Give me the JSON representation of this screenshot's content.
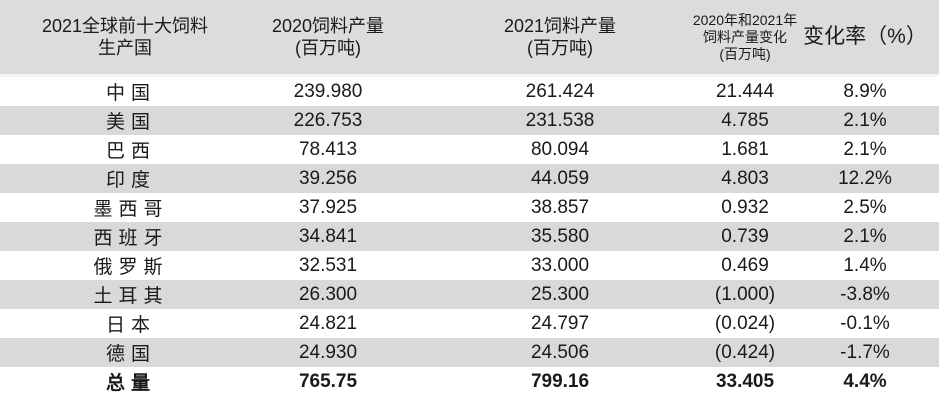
{
  "header": {
    "country": [
      "2021全球前十大饲料",
      "生产国"
    ],
    "prod2020": [
      "2020饲料产量",
      "(百万吨)"
    ],
    "prod2021": [
      "2021饲料产量",
      "(百万吨)"
    ],
    "change": [
      "2020年和2021年",
      "饲料产量变化",
      "(百万吨)"
    ],
    "rate": "变化率（%）"
  },
  "rows": [
    {
      "country": "中国",
      "p2020": "239.980",
      "p2021": "261.424",
      "change": "21.444",
      "rate": "8.9%"
    },
    {
      "country": "美国",
      "p2020": "226.753",
      "p2021": "231.538",
      "change": "4.785",
      "rate": "2.1%"
    },
    {
      "country": "巴西",
      "p2020": "78.413",
      "p2021": "80.094",
      "change": "1.681",
      "rate": "2.1%"
    },
    {
      "country": "印度",
      "p2020": "39.256",
      "p2021": "44.059",
      "change": "4.803",
      "rate": "12.2%"
    },
    {
      "country": "墨西哥",
      "p2020": "37.925",
      "p2021": "38.857",
      "change": "0.932",
      "rate": "2.5%"
    },
    {
      "country": "西班牙",
      "p2020": "34.841",
      "p2021": "35.580",
      "change": "0.739",
      "rate": "2.1%"
    },
    {
      "country": "俄罗斯",
      "p2020": "32.531",
      "p2021": "33.000",
      "change": "0.469",
      "rate": "1.4%"
    },
    {
      "country": "土耳其",
      "p2020": "26.300",
      "p2021": "25.300",
      "change": "(1.000)",
      "rate": "-3.8%"
    },
    {
      "country": "日本",
      "p2020": "24.821",
      "p2021": "24.797",
      "change": "(0.024)",
      "rate": "-0.1%"
    },
    {
      "country": "德国",
      "p2020": "24.930",
      "p2021": "24.506",
      "change": "(0.424)",
      "rate": "-1.7%"
    }
  ],
  "total": {
    "country": "总量",
    "p2020": "765.75",
    "p2021": "799.16",
    "change": "33.405",
    "rate": "4.4%"
  },
  "colors": {
    "header_bg": "#dcdcdc",
    "stripe_bg": "#d9d9d9",
    "text": "#1a1a1a"
  }
}
